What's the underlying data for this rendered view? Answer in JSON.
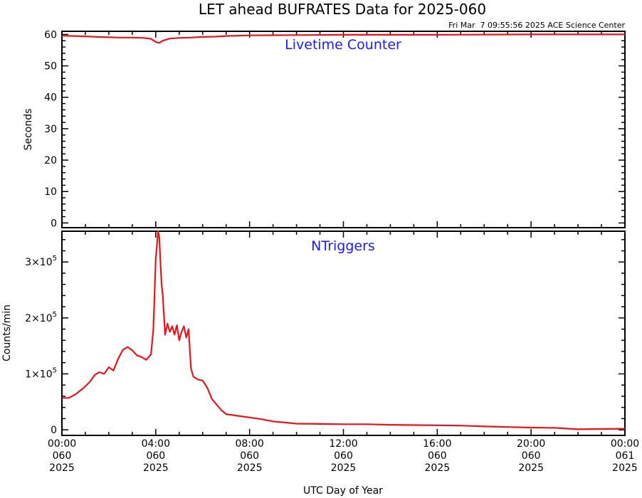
{
  "title": "LET ahead BUFRATES Data for 2025-060",
  "timestamp": "Fri Mar  7 09:55:56 2025 ACE Science Center",
  "xlabel": "UTC Day of Year",
  "colors": {
    "series": "#e8141c",
    "panel_label": "#1a1aff"
  },
  "chart_data": [
    {
      "type": "line",
      "panel_label": "Livetime Counter",
      "ylabel": "Seconds",
      "xlim": [
        0,
        24
      ],
      "ylim": [
        -1.5,
        61
      ],
      "yticks": [
        {
          "value": 0,
          "label": "0"
        },
        {
          "value": 10,
          "label": "10"
        },
        {
          "value": 20,
          "label": "20"
        },
        {
          "value": 30,
          "label": "30"
        },
        {
          "value": 40,
          "label": "40"
        },
        {
          "value": 50,
          "label": "50"
        },
        {
          "value": 60,
          "label": "60"
        }
      ],
      "x": [
        0,
        0.5,
        1,
        1.5,
        2,
        2.5,
        3,
        3.5,
        3.8,
        4.0,
        4.15,
        4.3,
        4.6,
        5.0,
        5.5,
        6,
        6.5,
        7,
        8,
        10,
        12,
        16,
        20,
        24
      ],
      "y": [
        59.6,
        59.5,
        59.4,
        59.2,
        59.1,
        59.0,
        59.0,
        58.9,
        58.6,
        57.6,
        57.3,
        58.0,
        58.7,
        58.9,
        59.0,
        59.2,
        59.3,
        59.5,
        59.7,
        59.8,
        59.9,
        59.9,
        60.0,
        60.0
      ]
    },
    {
      "type": "line",
      "panel_label": "NTriggers",
      "ylabel": "Counts/min",
      "xlim": [
        0,
        24
      ],
      "ylim": [
        -10000,
        355000
      ],
      "yticks": [
        {
          "value": 0,
          "label": "0",
          "exp": ""
        },
        {
          "value": 100000,
          "label": "1×10",
          "exp": "5"
        },
        {
          "value": 200000,
          "label": "2×10",
          "exp": "5"
        },
        {
          "value": 300000,
          "label": "3×10",
          "exp": "5"
        }
      ],
      "x": [
        0,
        0.3,
        0.6,
        0.9,
        1.2,
        1.4,
        1.6,
        1.8,
        2.0,
        2.2,
        2.4,
        2.6,
        2.8,
        3.0,
        3.2,
        3.4,
        3.6,
        3.8,
        3.9,
        4.0,
        4.05,
        4.1,
        4.15,
        4.2,
        4.25,
        4.3,
        4.4,
        4.5,
        4.6,
        4.7,
        4.8,
        4.9,
        5.0,
        5.1,
        5.2,
        5.3,
        5.4,
        5.5,
        5.6,
        5.8,
        6.0,
        6.2,
        6.4,
        6.6,
        6.8,
        7.0,
        7.5,
        8.0,
        8.5,
        9.0,
        9.5,
        10.0,
        11.0,
        12.0,
        13.0,
        14.0,
        15.0,
        16.0,
        17.0,
        18.0,
        19.0,
        20.0,
        21.0,
        22.0,
        23.0,
        24.0
      ],
      "y": [
        57000,
        57000,
        64000,
        74000,
        86000,
        98000,
        103000,
        100000,
        112000,
        106000,
        127000,
        143000,
        148000,
        142000,
        133000,
        130000,
        125000,
        135000,
        180000,
        305000,
        330000,
        355000,
        345000,
        300000,
        260000,
        240000,
        170000,
        190000,
        175000,
        185000,
        170000,
        187000,
        160000,
        175000,
        185000,
        165000,
        180000,
        110000,
        95000,
        90000,
        88000,
        75000,
        55000,
        45000,
        35000,
        28000,
        25000,
        22000,
        19000,
        15000,
        13000,
        11000,
        10500,
        10000,
        10000,
        9000,
        8500,
        8000,
        7500,
        6000,
        5000,
        4000,
        3500,
        1000,
        1500,
        2000
      ]
    }
  ],
  "xticks": [
    {
      "value": 0,
      "time": "00:00",
      "doy": "060",
      "year": "2025"
    },
    {
      "value": 4,
      "time": "04:00",
      "doy": "060",
      "year": "2025"
    },
    {
      "value": 8,
      "time": "08:00",
      "doy": "060",
      "year": "2025"
    },
    {
      "value": 12,
      "time": "12:00",
      "doy": "060",
      "year": "2025"
    },
    {
      "value": 16,
      "time": "16:00",
      "doy": "060",
      "year": "2025"
    },
    {
      "value": 20,
      "time": "20:00",
      "doy": "060",
      "year": "2025"
    },
    {
      "value": 24,
      "time": "00:00",
      "doy": "061",
      "year": "2025"
    }
  ]
}
